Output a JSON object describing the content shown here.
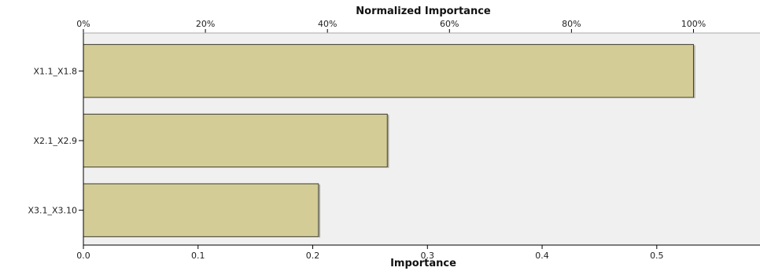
{
  "chart_data": {
    "type": "bar",
    "orientation": "horizontal",
    "categories": [
      "X1.1_X1.8",
      "X2.1_X2.9",
      "X3.1_X3.10"
    ],
    "values": [
      0.532,
      0.265,
      0.205
    ],
    "xlabel": "Importance",
    "x_ticks": [
      "0.0",
      "0.1",
      "0.2",
      "0.3",
      "0.4",
      "0.5"
    ],
    "xlim": [
      0,
      0.59
    ],
    "secondary_xlabel": "Normalized Importance",
    "secondary_ticks": [
      "0%",
      "20%",
      "40%",
      "60%",
      "80%",
      "100%"
    ],
    "secondary_max_value": 0.532,
    "grid": false,
    "colors": {
      "bar_fill": "#d4cc96",
      "bar_stroke": "#3a3a30",
      "plot_background": "#f0f0f0",
      "axis": "#000000"
    }
  }
}
